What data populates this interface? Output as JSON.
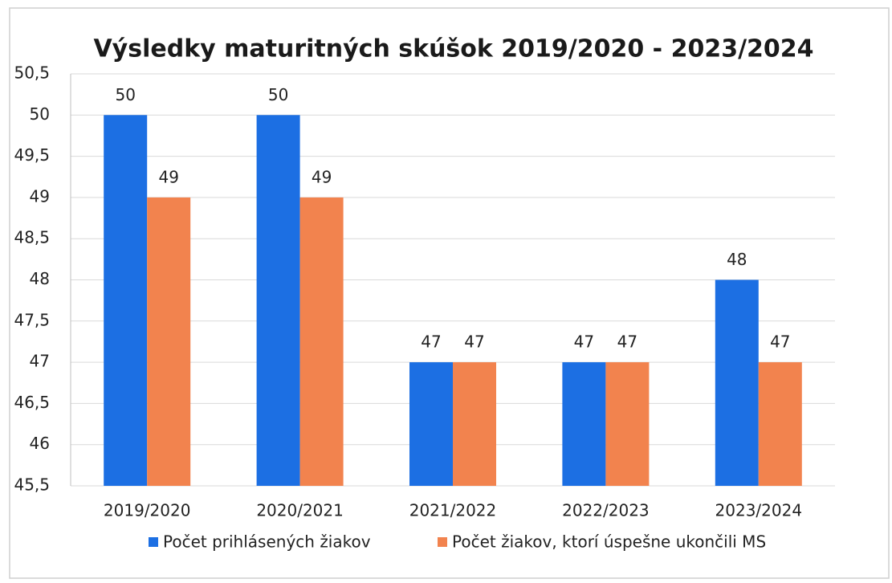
{
  "chart_data": {
    "type": "bar",
    "title": "Výsledky maturitných skúšok 2019/2020 - 2023/2024",
    "categories": [
      "2019/2020",
      "2020/2021",
      "2021/2022",
      "2022/2023",
      "2023/2024"
    ],
    "series": [
      {
        "name": "Počet prihlásených žiakov",
        "color": "#1c6fe3",
        "values": [
          50,
          50,
          47,
          47,
          48
        ]
      },
      {
        "name": "Počet žiakov, ktorí úspešne ukončili MS",
        "color": "#f2834e",
        "values": [
          49,
          49,
          47,
          47,
          47
        ]
      }
    ],
    "ylim": [
      45.5,
      50.5
    ],
    "yticks": [
      {
        "value": 45.5,
        "label": "45,5"
      },
      46,
      {
        "value": 46.5,
        "label": "46,5"
      },
      47,
      {
        "value": 47.5,
        "label": "47,5"
      },
      48,
      {
        "value": 48.5,
        "label": "48,5"
      },
      49,
      {
        "value": 49.5,
        "label": "49,5"
      },
      50,
      {
        "value": 50.5,
        "label": "50,5"
      }
    ],
    "grid": true,
    "legend": "bottom"
  }
}
